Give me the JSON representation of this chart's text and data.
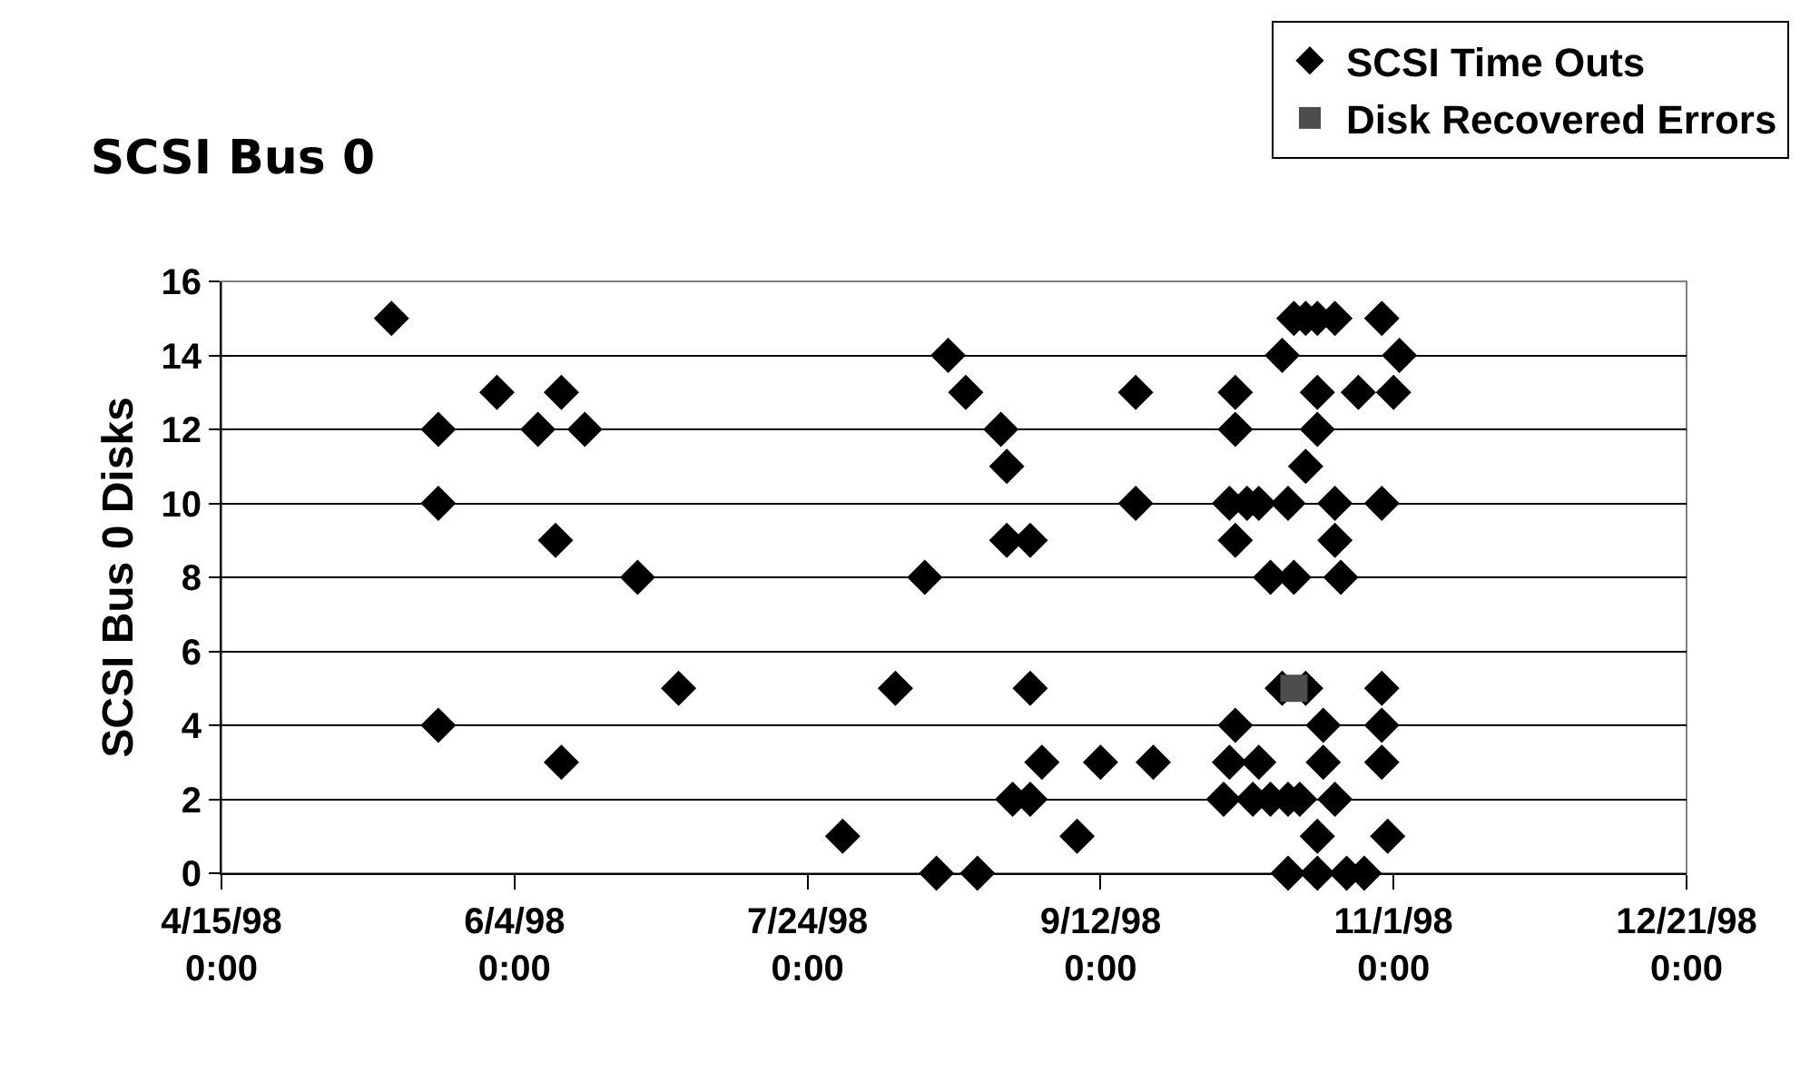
{
  "chart_data": {
    "type": "scatter",
    "title": "SCSI Bus 0",
    "ylabel": "SCSI Bus 0 Disks",
    "xlim": [
      "1998-04-15",
      "1998-12-21"
    ],
    "xticks": [
      {
        "value": "1998-04-15",
        "label": "4/15/98\n0:00"
      },
      {
        "value": "1998-06-04",
        "label": "6/4/98\n0:00"
      },
      {
        "value": "1998-07-24",
        "label": "7/24/98\n0:00"
      },
      {
        "value": "1998-09-12",
        "label": "9/12/98\n0:00"
      },
      {
        "value": "1998-11-01",
        "label": "11/1/98\n0:00"
      },
      {
        "value": "1998-12-21",
        "label": "12/21/98\n0:00"
      }
    ],
    "ylim": [
      0,
      16
    ],
    "yticks": [
      0,
      2,
      4,
      6,
      8,
      10,
      12,
      14,
      16
    ],
    "grid": "y",
    "legend": "top right",
    "series": [
      {
        "name": "SCSI Time Outs",
        "color": "#000000",
        "marker": "diamond",
        "x": [
          "1998-05-14",
          "1998-05-22",
          "1998-05-22",
          "1998-05-22",
          "1998-06-01",
          "1998-06-08",
          "1998-06-11",
          "1998-06-12",
          "1998-06-12",
          "1998-06-16",
          "1998-06-25",
          "1998-07-02",
          "1998-07-30",
          "1998-08-08",
          "1998-08-13",
          "1998-08-15",
          "1998-08-17",
          "1998-08-20",
          "1998-08-22",
          "1998-08-26",
          "1998-08-27",
          "1998-08-27",
          "1998-08-28",
          "1998-08-31",
          "1998-08-31",
          "1998-08-31",
          "1998-09-02",
          "1998-09-08",
          "1998-09-12",
          "1998-09-18",
          "1998-09-18",
          "1998-09-21",
          "1998-10-03",
          "1998-10-04",
          "1998-10-04",
          "1998-10-05",
          "1998-10-05",
          "1998-10-05",
          "1998-10-05",
          "1998-10-07",
          "1998-10-08",
          "1998-10-09",
          "1998-10-09",
          "1998-10-11",
          "1998-10-11",
          "1998-10-13",
          "1998-10-13",
          "1998-10-14",
          "1998-10-14",
          "1998-10-14",
          "1998-10-15",
          "1998-10-15",
          "1998-10-16",
          "1998-10-17",
          "1998-10-17",
          "1998-10-17",
          "1998-10-19",
          "1998-10-19",
          "1998-10-19",
          "1998-10-19",
          "1998-10-19",
          "1998-10-20",
          "1998-10-20",
          "1998-10-22",
          "1998-10-22",
          "1998-10-22",
          "1998-10-22",
          "1998-10-23",
          "1998-10-24",
          "1998-10-26",
          "1998-10-27",
          "1998-10-30",
          "1998-10-30",
          "1998-10-30",
          "1998-10-30",
          "1998-10-30",
          "1998-10-31",
          "1998-11-01",
          "1998-11-02"
        ],
        "values": [
          15,
          12,
          10,
          4,
          13,
          12,
          9,
          13,
          3,
          12,
          8,
          5,
          1,
          5,
          8,
          0,
          14,
          13,
          0,
          12,
          11,
          9,
          2,
          9,
          2,
          5,
          3,
          1,
          3,
          13,
          10,
          3,
          2,
          3,
          10,
          13,
          12,
          9,
          4,
          10,
          2,
          10,
          3,
          2,
          8,
          5,
          14,
          10,
          2,
          0,
          15,
          8,
          2,
          11,
          5,
          15,
          13,
          12,
          1,
          0,
          15,
          4,
          3,
          15,
          10,
          9,
          2,
          8,
          0,
          13,
          0,
          10,
          5,
          4,
          3,
          15,
          1,
          13,
          14
        ]
      },
      {
        "name": "Disk Recovered Errors",
        "color": "#4d4d4d",
        "marker": "square",
        "x": [
          "1998-10-15"
        ],
        "values": [
          5
        ]
      }
    ]
  }
}
